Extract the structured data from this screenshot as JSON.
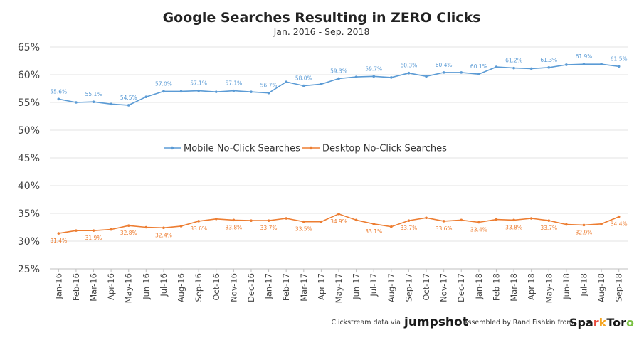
{
  "chart_data": {
    "type": "line",
    "title": "Google Searches Resulting in ZERO Clicks",
    "subtitle": "Jan. 2016 - Sep. 2018",
    "ylim": [
      25,
      65
    ],
    "yticks": [
      "25%",
      "30%",
      "35%",
      "40%",
      "45%",
      "50%",
      "55%",
      "60%",
      "65%"
    ],
    "grid": true,
    "legend_placement": "center",
    "categories": [
      "Jan-16",
      "Feb-16",
      "Mar-16",
      "Apr-16",
      "May-16",
      "Jun-16",
      "Jul-16",
      "Aug-16",
      "Sep-16",
      "Oct-16",
      "Nov-16",
      "Dec-16",
      "Jan-17",
      "Feb-17",
      "Mar-17",
      "Apr-17",
      "May-17",
      "Jun-17",
      "Jul-17",
      "Aug-17",
      "Sep-17",
      "Oct-17",
      "Nov-17",
      "Dec-17",
      "Jan-18",
      "Feb-18",
      "Mar-18",
      "Apr-18",
      "May-18",
      "Jun-18",
      "Jul-18",
      "Aug-18",
      "Sep-18"
    ],
    "series": [
      {
        "name": "Mobile No-Click Searches",
        "color": "#5b9bd5",
        "values": [
          55.6,
          55.0,
          55.1,
          54.7,
          54.5,
          56.0,
          57.0,
          57.0,
          57.1,
          56.9,
          57.1,
          56.9,
          56.7,
          58.7,
          58.0,
          58.3,
          59.3,
          59.6,
          59.7,
          59.5,
          60.3,
          59.7,
          60.4,
          60.4,
          60.1,
          61.4,
          61.2,
          61.1,
          61.3,
          61.8,
          61.9,
          61.9,
          61.5
        ],
        "labels": [
          "55.6%",
          "",
          "55.1%",
          "",
          "54.5%",
          "",
          "57.0%",
          "",
          "57.1%",
          "",
          "57.1%",
          "",
          "56.7%",
          "",
          "58.0%",
          "",
          "59.3%",
          "",
          "59.7%",
          "",
          "60.3%",
          "",
          "60.4%",
          "",
          "60.1%",
          "",
          "61.2%",
          "",
          "61.3%",
          "",
          "61.9%",
          "",
          "61.5%"
        ]
      },
      {
        "name": "Desktop No-Click Searches",
        "color": "#ed7d31",
        "values": [
          31.4,
          31.9,
          31.9,
          32.1,
          32.8,
          32.5,
          32.4,
          32.7,
          33.6,
          34.0,
          33.8,
          33.7,
          33.7,
          34.1,
          33.5,
          33.5,
          34.9,
          33.8,
          33.1,
          32.6,
          33.7,
          34.2,
          33.6,
          33.8,
          33.4,
          33.9,
          33.8,
          34.1,
          33.7,
          33.0,
          32.9,
          33.1,
          34.4
        ],
        "labels": [
          "31.4%",
          "",
          "31.9%",
          "",
          "32.8%",
          "",
          "32.4%",
          "",
          "33.6%",
          "",
          "33.8%",
          "",
          "33.7%",
          "",
          "33.5%",
          "",
          "34.9%",
          "",
          "33.1%",
          "",
          "33.7%",
          "",
          "33.6%",
          "",
          "33.4%",
          "",
          "33.8%",
          "",
          "33.7%",
          "",
          "32.9%",
          "",
          "34.4%"
        ]
      }
    ]
  },
  "footer": {
    "source_text": "Clickstream data via",
    "source_brand": "jumpshot",
    "credit_text": "Assembled by Rand Fishkin from",
    "credit_brand_parts": [
      "Spa",
      "r",
      "k",
      "Tor",
      "o"
    ],
    "credit_brand_colors": [
      "#1a1a1a",
      "#e94b3c",
      "#f5a623",
      "#1a1a1a",
      "#7ac143"
    ]
  }
}
